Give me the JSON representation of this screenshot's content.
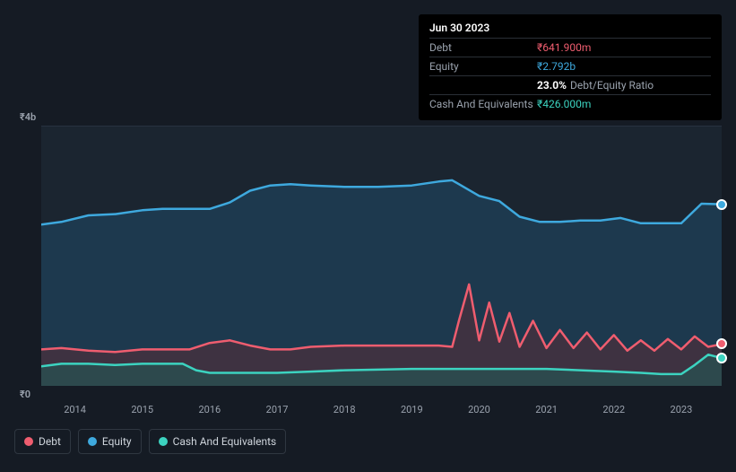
{
  "tooltip": {
    "date": "Jun 30 2023",
    "rows": [
      {
        "label": "Debt",
        "value": "₹641.900m",
        "cls": "debt"
      },
      {
        "label": "Equity",
        "value": "₹2.792b",
        "cls": "equity"
      },
      {
        "label": "",
        "pct": "23.0%",
        "ratio_label": "Debt/Equity Ratio"
      },
      {
        "label": "Cash And Equivalents",
        "value": "₹426.000m",
        "cls": "cash"
      }
    ]
  },
  "chart": {
    "type": "area",
    "background_color": "#1b2530",
    "page_background": "#151b24",
    "grid_color": "#283240",
    "y_axis": {
      "top_label": "₹4b",
      "bottom_label": "₹0",
      "min": 0,
      "max": 4000000000
    },
    "x_axis": {
      "start_year": 2013.5,
      "end_year": 2023.6,
      "ticks": [
        "2014",
        "2015",
        "2016",
        "2017",
        "2018",
        "2019",
        "2020",
        "2021",
        "2022",
        "2023"
      ]
    },
    "series": {
      "equity": {
        "label": "Equity",
        "color": "#3ea9de",
        "fill": "#1f4763",
        "fill_opacity": 0.6,
        "line_width": 2.5,
        "points": [
          [
            2013.5,
            2480000000
          ],
          [
            2013.8,
            2520000000
          ],
          [
            2014.2,
            2620000000
          ],
          [
            2014.6,
            2640000000
          ],
          [
            2015.0,
            2700000000
          ],
          [
            2015.3,
            2720000000
          ],
          [
            2015.7,
            2720000000
          ],
          [
            2016.0,
            2720000000
          ],
          [
            2016.3,
            2820000000
          ],
          [
            2016.6,
            3000000000
          ],
          [
            2016.9,
            3080000000
          ],
          [
            2017.2,
            3100000000
          ],
          [
            2017.5,
            3080000000
          ],
          [
            2018.0,
            3060000000
          ],
          [
            2018.5,
            3060000000
          ],
          [
            2019.0,
            3080000000
          ],
          [
            2019.4,
            3140000000
          ],
          [
            2019.6,
            3160000000
          ],
          [
            2019.8,
            3040000000
          ],
          [
            2020.0,
            2920000000
          ],
          [
            2020.3,
            2840000000
          ],
          [
            2020.6,
            2600000000
          ],
          [
            2020.9,
            2520000000
          ],
          [
            2021.2,
            2520000000
          ],
          [
            2021.5,
            2540000000
          ],
          [
            2021.8,
            2540000000
          ],
          [
            2022.1,
            2580000000
          ],
          [
            2022.4,
            2500000000
          ],
          [
            2022.7,
            2500000000
          ],
          [
            2023.0,
            2500000000
          ],
          [
            2023.3,
            2800000000
          ],
          [
            2023.6,
            2792000000
          ]
        ]
      },
      "debt": {
        "label": "Debt",
        "color": "#ef5d6f",
        "fill": "#5a2d37",
        "fill_opacity": 0.55,
        "line_width": 2.5,
        "points": [
          [
            2013.5,
            560000000
          ],
          [
            2013.8,
            580000000
          ],
          [
            2014.2,
            540000000
          ],
          [
            2014.6,
            520000000
          ],
          [
            2015.0,
            560000000
          ],
          [
            2015.3,
            560000000
          ],
          [
            2015.7,
            560000000
          ],
          [
            2016.0,
            660000000
          ],
          [
            2016.3,
            700000000
          ],
          [
            2016.6,
            620000000
          ],
          [
            2016.9,
            560000000
          ],
          [
            2017.2,
            560000000
          ],
          [
            2017.5,
            600000000
          ],
          [
            2018.0,
            620000000
          ],
          [
            2018.5,
            620000000
          ],
          [
            2019.0,
            620000000
          ],
          [
            2019.4,
            620000000
          ],
          [
            2019.6,
            600000000
          ],
          [
            2019.7,
            1000000000
          ],
          [
            2019.85,
            1560000000
          ],
          [
            2020.0,
            700000000
          ],
          [
            2020.15,
            1280000000
          ],
          [
            2020.3,
            680000000
          ],
          [
            2020.45,
            1120000000
          ],
          [
            2020.6,
            600000000
          ],
          [
            2020.8,
            1000000000
          ],
          [
            2021.0,
            580000000
          ],
          [
            2021.2,
            860000000
          ],
          [
            2021.4,
            580000000
          ],
          [
            2021.6,
            820000000
          ],
          [
            2021.8,
            560000000
          ],
          [
            2022.0,
            780000000
          ],
          [
            2022.2,
            540000000
          ],
          [
            2022.4,
            700000000
          ],
          [
            2022.6,
            540000000
          ],
          [
            2022.8,
            720000000
          ],
          [
            2023.0,
            560000000
          ],
          [
            2023.2,
            760000000
          ],
          [
            2023.4,
            600000000
          ],
          [
            2023.6,
            641900000
          ]
        ]
      },
      "cash": {
        "label": "Cash And Equivalents",
        "color": "#3cd3c0",
        "fill": "#1f5c58",
        "fill_opacity": 0.55,
        "line_width": 2.5,
        "points": [
          [
            2013.5,
            300000000
          ],
          [
            2013.8,
            340000000
          ],
          [
            2014.2,
            340000000
          ],
          [
            2014.6,
            320000000
          ],
          [
            2015.0,
            340000000
          ],
          [
            2015.3,
            340000000
          ],
          [
            2015.6,
            340000000
          ],
          [
            2015.8,
            240000000
          ],
          [
            2016.0,
            200000000
          ],
          [
            2016.3,
            200000000
          ],
          [
            2016.6,
            200000000
          ],
          [
            2017.0,
            200000000
          ],
          [
            2017.5,
            220000000
          ],
          [
            2018.0,
            240000000
          ],
          [
            2018.5,
            250000000
          ],
          [
            2019.0,
            260000000
          ],
          [
            2019.5,
            260000000
          ],
          [
            2020.0,
            260000000
          ],
          [
            2020.5,
            260000000
          ],
          [
            2021.0,
            260000000
          ],
          [
            2021.5,
            240000000
          ],
          [
            2022.0,
            220000000
          ],
          [
            2022.4,
            200000000
          ],
          [
            2022.7,
            180000000
          ],
          [
            2023.0,
            180000000
          ],
          [
            2023.2,
            320000000
          ],
          [
            2023.4,
            480000000
          ],
          [
            2023.6,
            426000000
          ]
        ]
      }
    },
    "end_markers": [
      {
        "series": "equity",
        "x": 2023.6,
        "y": 2792000000,
        "color": "#3ea9de"
      },
      {
        "series": "debt",
        "x": 2023.6,
        "y": 641900000,
        "color": "#ef5d6f"
      },
      {
        "series": "cash",
        "x": 2023.6,
        "y": 426000000,
        "color": "#3cd3c0"
      }
    ]
  },
  "legend": [
    {
      "label": "Debt",
      "color": "#ef5d6f"
    },
    {
      "label": "Equity",
      "color": "#3ea9de"
    },
    {
      "label": "Cash And Equivalents",
      "color": "#3cd3c0"
    }
  ]
}
